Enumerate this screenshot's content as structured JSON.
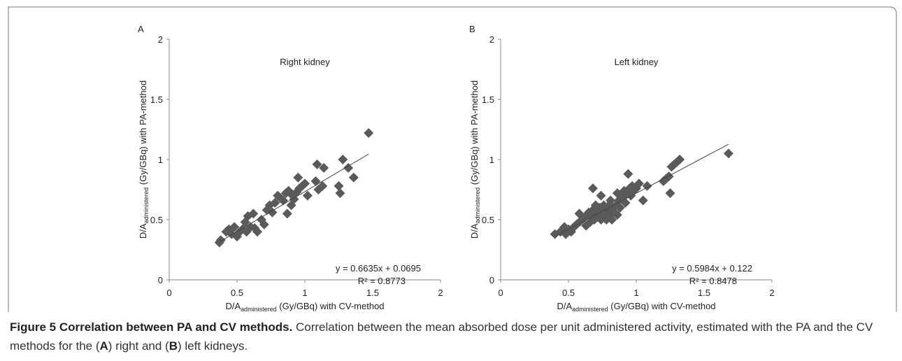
{
  "chart_data": [
    {
      "type": "scatter",
      "panel": "A",
      "title": "Right kidney",
      "x_label": {
        "main": "D/A",
        "sub": "administered",
        "rest": " (Gy/GBq) with CV-method"
      },
      "y_label": {
        "main": "D/A",
        "sub": "administered",
        "rest": " (Gy/GBq) with PA-method"
      },
      "xlim": [
        0,
        2
      ],
      "ylim": [
        0,
        2
      ],
      "xticks": [
        0,
        0.5,
        1,
        1.5,
        2
      ],
      "yticks": [
        0,
        0.5,
        1,
        1.5,
        2
      ],
      "color": "#5a5a5a",
      "x": [
        0.37,
        0.38,
        0.42,
        0.44,
        0.46,
        0.48,
        0.5,
        0.52,
        0.54,
        0.56,
        0.57,
        0.58,
        0.6,
        0.62,
        0.63,
        0.65,
        0.68,
        0.7,
        0.72,
        0.74,
        0.76,
        0.78,
        0.8,
        0.82,
        0.84,
        0.86,
        0.87,
        0.88,
        0.9,
        0.91,
        0.92,
        0.94,
        0.95,
        0.96,
        0.98,
        1.0,
        1.02,
        1.08,
        1.09,
        1.1,
        1.13,
        1.14,
        1.25,
        1.26,
        1.28,
        1.32,
        1.36,
        1.47
      ],
      "values": [
        0.31,
        0.33,
        0.4,
        0.42,
        0.38,
        0.44,
        0.36,
        0.4,
        0.42,
        0.48,
        0.4,
        0.53,
        0.44,
        0.55,
        0.43,
        0.4,
        0.5,
        0.46,
        0.58,
        0.62,
        0.56,
        0.64,
        0.7,
        0.68,
        0.66,
        0.72,
        0.55,
        0.74,
        0.62,
        0.7,
        0.67,
        0.73,
        0.85,
        0.76,
        0.78,
        0.8,
        0.7,
        0.82,
        0.96,
        0.75,
        0.78,
        0.93,
        0.78,
        0.72,
        1.0,
        0.93,
        0.85,
        1.22
      ],
      "trendline": {
        "x": [
          0.37,
          1.47
        ],
        "values": [
          0.315,
          1.045
        ]
      },
      "equation": "y = 0.6635x + 0.0695",
      "r_squared": "R² = 0.8773"
    },
    {
      "type": "scatter",
      "panel": "B",
      "title": "Left kidney",
      "x_label": {
        "main": "D/A",
        "sub": "administered",
        "rest": " (Gy/GBq) with CV-method"
      },
      "y_label": {
        "main": "D/A",
        "sub": "administered",
        "rest": " (Gy/GBq) with PA-method"
      },
      "xlim": [
        0,
        2
      ],
      "ylim": [
        0,
        2
      ],
      "xticks": [
        0,
        0.5,
        1,
        1.5,
        2
      ],
      "yticks": [
        0,
        0.5,
        1,
        1.5,
        2
      ],
      "color": "#5a5a5a",
      "x": [
        0.4,
        0.44,
        0.47,
        0.48,
        0.5,
        0.52,
        0.54,
        0.56,
        0.58,
        0.58,
        0.6,
        0.62,
        0.63,
        0.65,
        0.66,
        0.67,
        0.68,
        0.68,
        0.69,
        0.7,
        0.7,
        0.71,
        0.72,
        0.72,
        0.73,
        0.74,
        0.74,
        0.75,
        0.76,
        0.76,
        0.77,
        0.78,
        0.78,
        0.79,
        0.8,
        0.8,
        0.81,
        0.82,
        0.82,
        0.83,
        0.84,
        0.85,
        0.86,
        0.86,
        0.87,
        0.88,
        0.89,
        0.9,
        0.91,
        0.92,
        0.93,
        0.94,
        0.95,
        0.96,
        0.97,
        0.98,
        1.0,
        1.02,
        1.05,
        1.08,
        1.2,
        1.22,
        1.24,
        1.25,
        1.26,
        1.28,
        1.3,
        1.32,
        1.68
      ],
      "values": [
        0.38,
        0.4,
        0.44,
        0.38,
        0.42,
        0.4,
        0.44,
        0.46,
        0.55,
        0.48,
        0.5,
        0.52,
        0.45,
        0.56,
        0.48,
        0.54,
        0.76,
        0.58,
        0.5,
        0.56,
        0.62,
        0.52,
        0.58,
        0.54,
        0.6,
        0.5,
        0.7,
        0.56,
        0.62,
        0.52,
        0.58,
        0.6,
        0.5,
        0.56,
        0.62,
        0.54,
        0.66,
        0.58,
        0.5,
        0.6,
        0.56,
        0.62,
        0.54,
        0.72,
        0.66,
        0.6,
        0.7,
        0.68,
        0.74,
        0.64,
        0.72,
        0.88,
        0.76,
        0.7,
        0.78,
        0.74,
        0.76,
        0.8,
        0.66,
        0.78,
        0.82,
        0.84,
        0.86,
        0.72,
        0.94,
        0.96,
        0.98,
        1.0,
        1.05
      ],
      "trendline": {
        "x": [
          0.4,
          1.68
        ],
        "values": [
          0.361,
          1.127
        ]
      },
      "equation": "y = 0.5984x + 0.122",
      "r_squared": "R² = 0.8478"
    }
  ],
  "caption": {
    "title": "Figure 5 Correlation between PA and CV methods.",
    "runs": [
      " Correlation between the mean absorbed dose per unit administered activity, estimated with the PA and the CV methods for the (",
      "A",
      ") right and (",
      "B",
      ") left kidneys."
    ]
  }
}
